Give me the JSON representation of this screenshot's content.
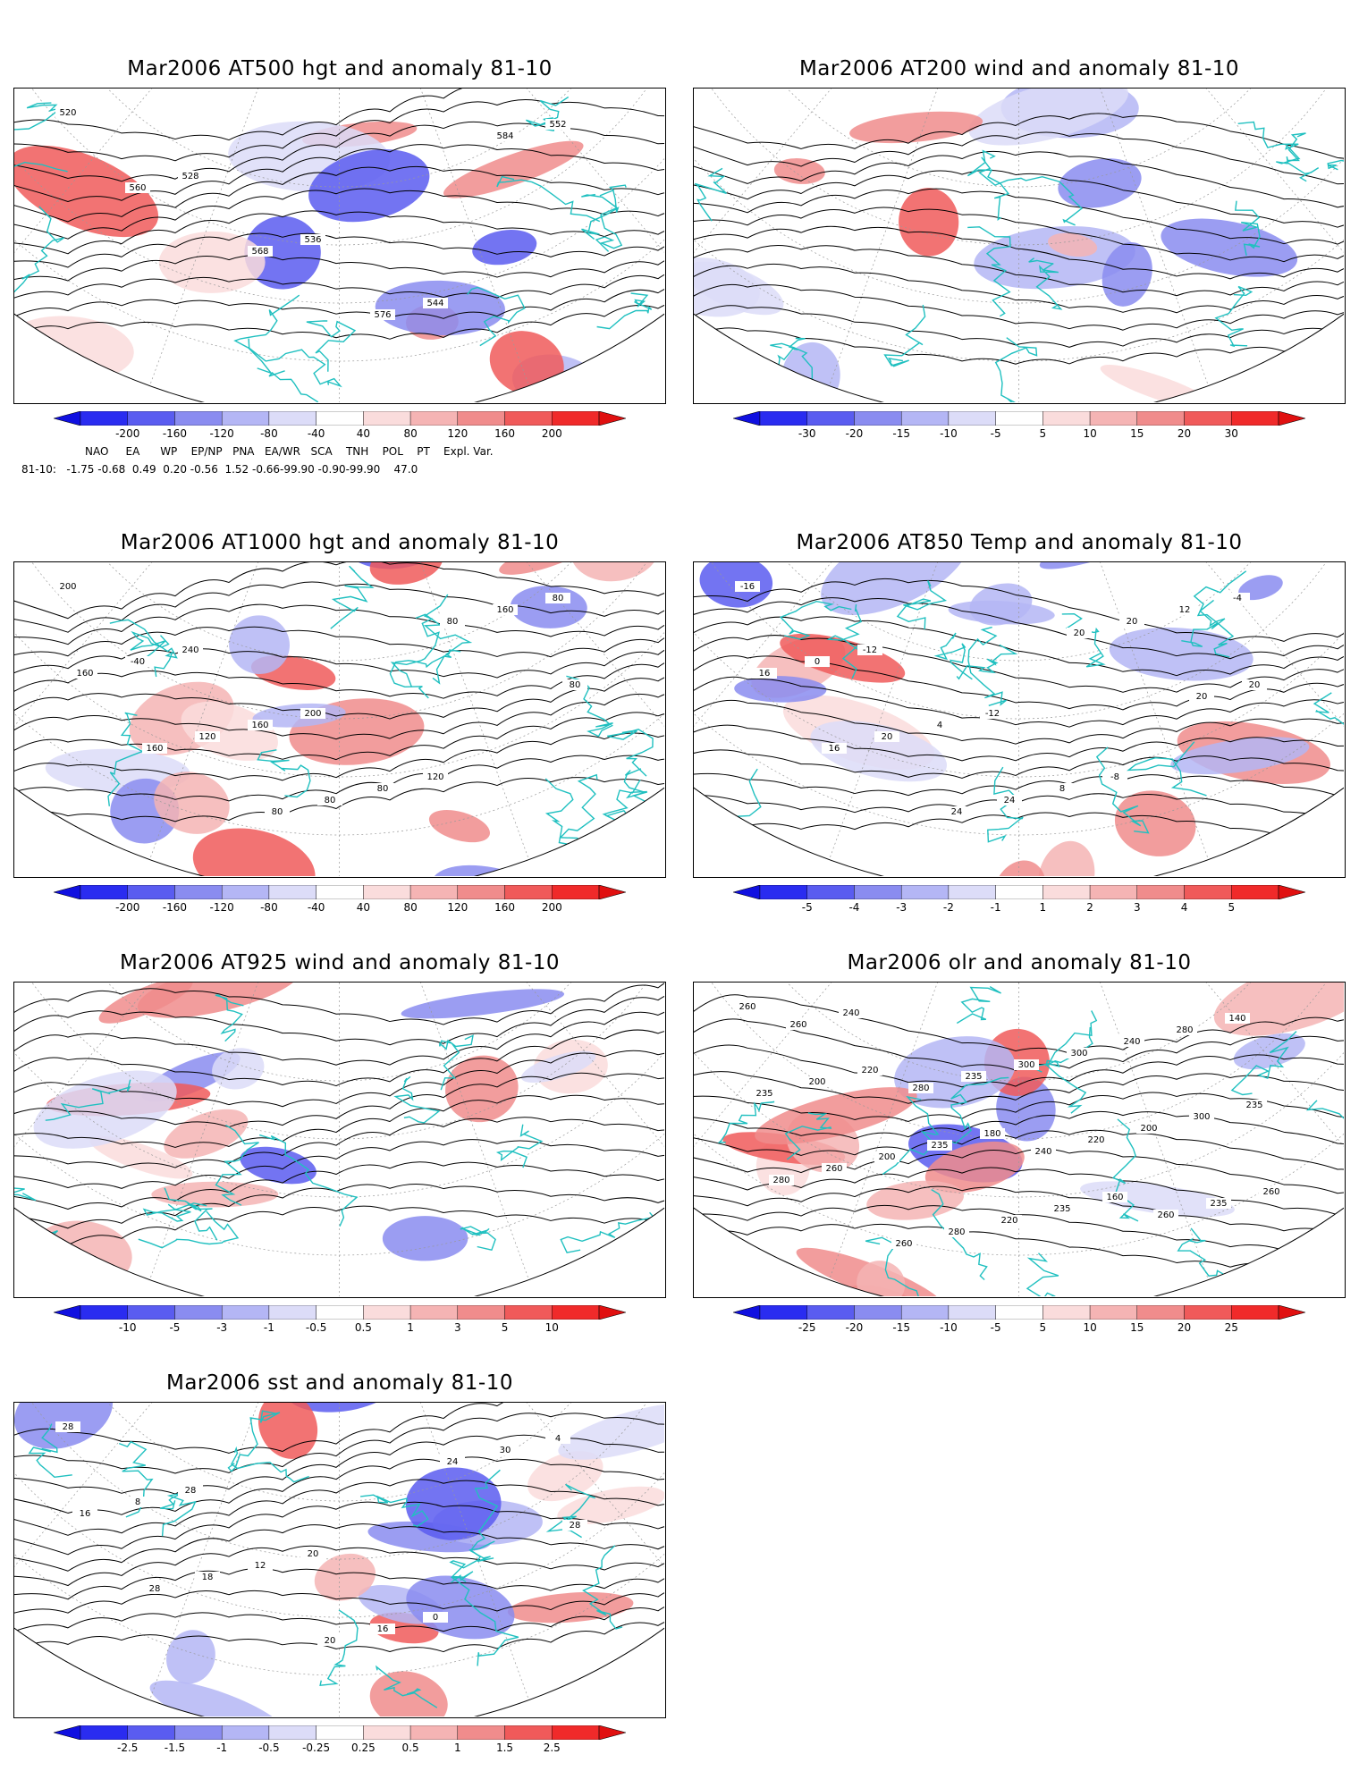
{
  "panels": [
    {
      "id": "p500",
      "title": "Mar2006 AT500 hgt and anomaly 81-10",
      "cbar": [
        "-200",
        "-160",
        "-120",
        "-80",
        "-40",
        "40",
        "80",
        "120",
        "160",
        "200"
      ],
      "contours": [
        "520",
        "528",
        "536",
        "544",
        "552",
        "560",
        "568",
        "576",
        "584"
      ],
      "mapcolor": "anom"
    },
    {
      "id": "p200",
      "title": "Mar2006 AT200 wind and anomaly 81-10",
      "cbar": [
        "-30",
        "-20",
        "-15",
        "-10",
        "-5",
        "5",
        "10",
        "15",
        "20",
        "30"
      ],
      "contours": [],
      "mapcolor": "anom"
    },
    {
      "id": "p1000",
      "title": "Mar2006 AT1000 hgt and anomaly 81-10",
      "cbar": [
        "-200",
        "-160",
        "-120",
        "-80",
        "-40",
        "40",
        "80",
        "120",
        "160",
        "200"
      ],
      "contours": [
        "200",
        "240",
        "200",
        "120",
        "80",
        "-40",
        "160",
        "80",
        "160",
        "160",
        "120",
        "80",
        "80",
        "80",
        "160",
        "80"
      ],
      "mapcolor": "anom"
    },
    {
      "id": "p850",
      "title": "Mar2006 AT850 Temp and anomaly 81-10",
      "cbar": [
        "-5",
        "-4",
        "-3",
        "-2",
        "-1",
        "1",
        "2",
        "3",
        "4",
        "5"
      ],
      "contours": [
        "-16",
        "-12",
        "-12",
        "-8",
        "-4",
        "0",
        "4",
        "8",
        "12",
        "16",
        "20",
        "24",
        "20",
        "20",
        "16",
        "24",
        "20",
        "20"
      ],
      "mapcolor": "anom"
    },
    {
      "id": "p925",
      "title": "Mar2006 AT925 wind and anomaly 81-10",
      "cbar": [
        "-10",
        "-5",
        "-3",
        "-1",
        "-0.5",
        "0.5",
        "1",
        "3",
        "5",
        "10"
      ],
      "contours": [],
      "mapcolor": "anom"
    },
    {
      "id": "polr",
      "title": "Mar2006 olr and anomaly 81-10",
      "cbar": [
        "-25",
        "-20",
        "-15",
        "-10",
        "-5",
        "5",
        "10",
        "15",
        "20",
        "25"
      ],
      "contours": [
        "260",
        "220",
        "180",
        "160",
        "140",
        "200",
        "235",
        "235",
        "280",
        "235",
        "200",
        "220",
        "240",
        "235",
        "260",
        "280",
        "300",
        "300",
        "280",
        "260",
        "300",
        "200",
        "260",
        "240",
        "235",
        "220",
        "235",
        "260",
        "280",
        "240",
        "260"
      ],
      "mapcolor": "anom"
    },
    {
      "id": "psst",
      "title": "Mar2006 sst and anomaly 81-10",
      "cbar": [
        "-2.5",
        "-1.5",
        "-1",
        "-0.5",
        "-0.25",
        "0.25",
        "0.5",
        "1",
        "1.5",
        "2.5"
      ],
      "contours": [
        "28",
        "28",
        "20",
        "0",
        "4",
        "8",
        "12",
        "16",
        "30",
        "16",
        "18",
        "20",
        "24",
        "28",
        "28"
      ],
      "mapcolor": "anom"
    }
  ],
  "indices": {
    "headers": [
      "NAO",
      "EA",
      "WP",
      "EP/NP",
      "PNA",
      "EA/WR",
      "SCA",
      "TNH",
      "POL",
      "PT",
      "Expl. Var."
    ],
    "row_label": "81-10:",
    "values": "-1.75 -0.68  0.49  0.20 -0.56  1.52 -0.66-99.90 -0.90-99.90    47.0"
  },
  "colors": {
    "blue": [
      "#2a2cf0",
      "#5a5cf0",
      "#8a8cf0",
      "#b4b6f5",
      "#dcdcf8"
    ],
    "red": [
      "#fadcdc",
      "#f5b4b4",
      "#f08c8c",
      "#f05a5a",
      "#f02a2a"
    ],
    "coast": "#20c0c0"
  }
}
